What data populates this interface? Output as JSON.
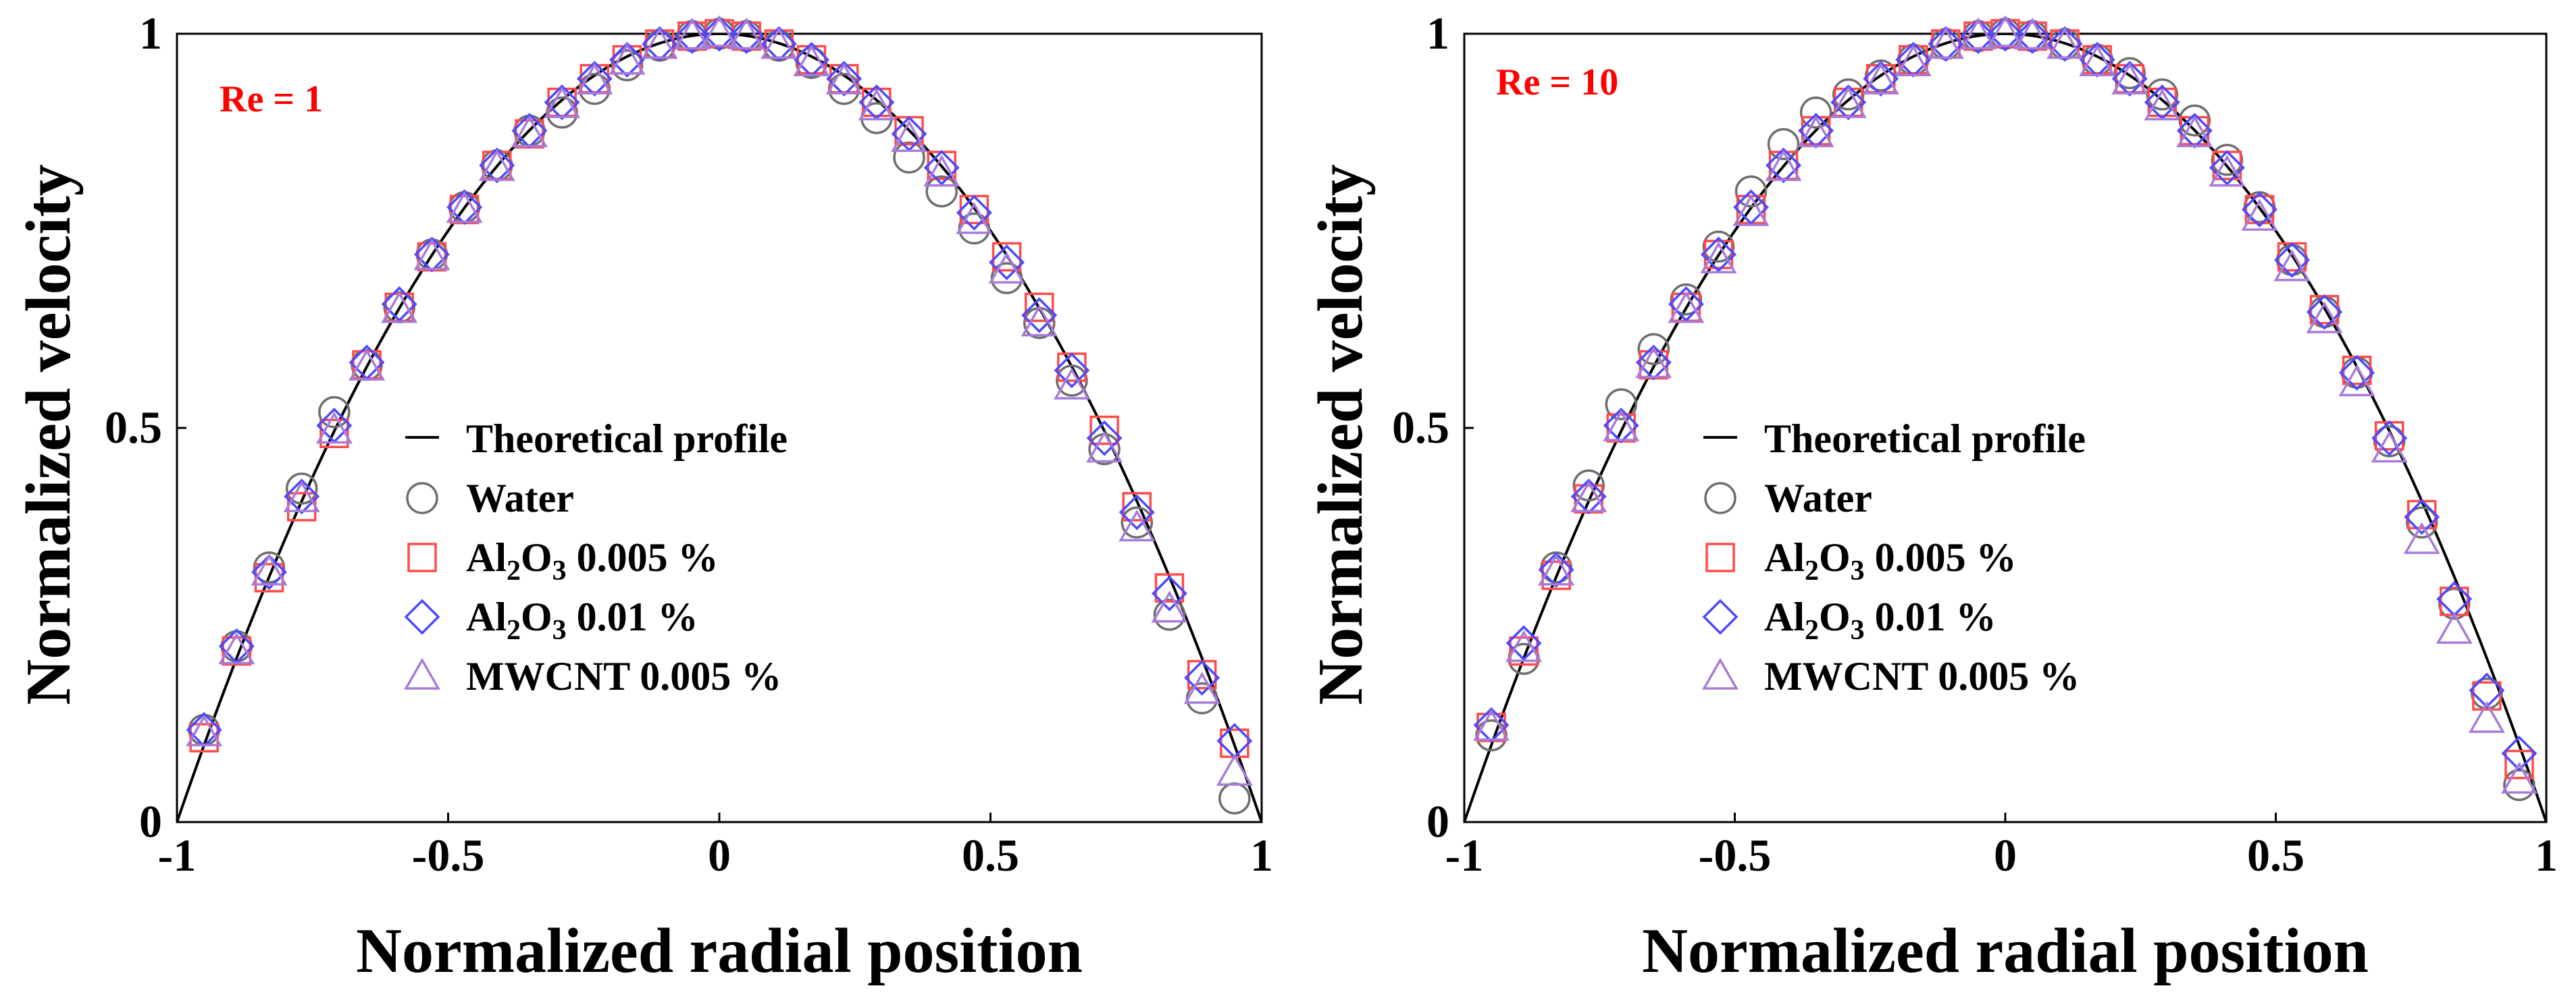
{
  "chart_data": [
    {
      "type": "scatter",
      "annotation": "Re = 1",
      "annotation_color": "#ff0000",
      "xlabel": "Normalized radial position",
      "ylabel": "Normalized velocity",
      "xlim": [
        -1,
        1
      ],
      "ylim": [
        0,
        1
      ],
      "xticks": [
        "-1",
        "-0.5",
        "0",
        "0.5",
        "1"
      ],
      "yticks": [
        "0",
        "0.5",
        "1"
      ],
      "legend_position": "center",
      "theory": {
        "name": "Theoretical profile",
        "formula": "1 - r^2",
        "color": "#000000"
      },
      "series": [
        {
          "name": "Water",
          "marker": "circle",
          "color": "#6e6e6e",
          "x": [
            -0.95,
            -0.89,
            -0.83,
            -0.77,
            -0.71,
            -0.65,
            -0.59,
            -0.53,
            -0.47,
            -0.41,
            -0.35,
            -0.29,
            -0.23,
            -0.17,
            -0.11,
            -0.05,
            0,
            0.05,
            0.11,
            0.17,
            0.23,
            0.29,
            0.35,
            0.41,
            0.47,
            0.53,
            0.59,
            0.65,
            0.71,
            0.77,
            0.83,
            0.89,
            0.95
          ],
          "y": [
            0.117,
            0.223,
            0.323,
            0.423,
            0.52,
            0.58,
            0.653,
            0.72,
            0.78,
            0.833,
            0.877,
            0.9,
            0.93,
            0.96,
            0.985,
            0.997,
            1.0,
            0.997,
            0.985,
            0.963,
            0.93,
            0.893,
            0.843,
            0.8,
            0.753,
            0.69,
            0.633,
            0.56,
            0.473,
            0.38,
            0.263,
            0.157,
            0.03
          ]
        },
        {
          "name": "Al2O3  0.005 %",
          "marker": "square",
          "color": "#ff4a4a",
          "x": [
            -0.95,
            -0.89,
            -0.83,
            -0.77,
            -0.71,
            -0.65,
            -0.59,
            -0.53,
            -0.47,
            -0.41,
            -0.35,
            -0.29,
            -0.23,
            -0.17,
            -0.11,
            -0.05,
            0,
            0.05,
            0.11,
            0.17,
            0.23,
            0.29,
            0.35,
            0.41,
            0.47,
            0.53,
            0.59,
            0.65,
            0.71,
            0.77,
            0.83,
            0.89,
            0.95
          ],
          "y": [
            0.107,
            0.217,
            0.31,
            0.4,
            0.493,
            0.58,
            0.653,
            0.717,
            0.777,
            0.833,
            0.873,
            0.913,
            0.943,
            0.967,
            0.987,
            0.997,
            1.0,
            0.997,
            0.987,
            0.967,
            0.943,
            0.913,
            0.877,
            0.833,
            0.777,
            0.717,
            0.653,
            0.577,
            0.497,
            0.4,
            0.297,
            0.187,
            0.1
          ]
        },
        {
          "name": "Al2O3  0.01 %",
          "marker": "diamond",
          "color": "#4a4aff",
          "x": [
            -0.95,
            -0.89,
            -0.83,
            -0.77,
            -0.71,
            -0.65,
            -0.59,
            -0.53,
            -0.47,
            -0.41,
            -0.35,
            -0.29,
            -0.23,
            -0.17,
            -0.11,
            -0.05,
            0,
            0.05,
            0.11,
            0.17,
            0.23,
            0.29,
            0.35,
            0.41,
            0.47,
            0.53,
            0.59,
            0.65,
            0.71,
            0.77,
            0.83,
            0.89,
            0.95
          ],
          "y": [
            0.117,
            0.223,
            0.317,
            0.413,
            0.503,
            0.583,
            0.657,
            0.72,
            0.78,
            0.833,
            0.877,
            0.913,
            0.943,
            0.967,
            0.987,
            0.997,
            1.0,
            0.997,
            0.987,
            0.967,
            0.943,
            0.913,
            0.873,
            0.83,
            0.773,
            0.71,
            0.643,
            0.573,
            0.487,
            0.393,
            0.29,
            0.183,
            0.103
          ]
        },
        {
          "name": "MWCNT  0.005 %",
          "marker": "triangle",
          "color": "#a77bd9",
          "x": [
            -0.95,
            -0.89,
            -0.83,
            -0.77,
            -0.71,
            -0.65,
            -0.59,
            -0.53,
            -0.47,
            -0.41,
            -0.35,
            -0.29,
            -0.23,
            -0.17,
            -0.11,
            -0.05,
            0,
            0.05,
            0.11,
            0.17,
            0.23,
            0.29,
            0.35,
            0.41,
            0.47,
            0.53,
            0.59,
            0.65,
            0.71,
            0.77,
            0.83,
            0.89,
            0.95
          ],
          "y": [
            0.113,
            0.217,
            0.317,
            0.41,
            0.497,
            0.577,
            0.65,
            0.717,
            0.777,
            0.83,
            0.873,
            0.91,
            0.94,
            0.965,
            0.985,
            0.997,
            1.0,
            0.997,
            0.985,
            0.963,
            0.94,
            0.907,
            0.867,
            0.823,
            0.763,
            0.7,
            0.633,
            0.553,
            0.473,
            0.373,
            0.27,
            0.167,
            0.063
          ]
        }
      ]
    },
    {
      "type": "scatter",
      "annotation": "Re = 10",
      "annotation_color": "#ff0000",
      "xlabel": "Normalized radial position",
      "ylabel": "Normalized velocity",
      "xlim": [
        -1,
        1
      ],
      "ylim": [
        0,
        1
      ],
      "xticks": [
        "-1",
        "-0.5",
        "0",
        "0.5",
        "1"
      ],
      "yticks": [
        "0",
        "0.5",
        "1"
      ],
      "legend_position": "center",
      "theory": {
        "name": "Theoretical profile",
        "formula": "1 - r^2",
        "color": "#000000"
      },
      "series": [
        {
          "name": "Water",
          "marker": "circle",
          "color": "#6e6e6e",
          "x": [
            -0.95,
            -0.89,
            -0.83,
            -0.77,
            -0.71,
            -0.65,
            -0.59,
            -0.53,
            -0.47,
            -0.41,
            -0.35,
            -0.29,
            -0.23,
            -0.17,
            -0.11,
            -0.05,
            0,
            0.05,
            0.11,
            0.17,
            0.23,
            0.29,
            0.35,
            0.41,
            0.47,
            0.53,
            0.59,
            0.65,
            0.71,
            0.77,
            0.83,
            0.89,
            0.95
          ],
          "y": [
            0.11,
            0.207,
            0.323,
            0.427,
            0.53,
            0.6,
            0.663,
            0.73,
            0.8,
            0.86,
            0.9,
            0.923,
            0.947,
            0.967,
            0.987,
            0.997,
            1.0,
            0.997,
            0.987,
            0.967,
            0.95,
            0.923,
            0.89,
            0.84,
            0.78,
            0.713,
            0.647,
            0.57,
            0.483,
            0.38,
            0.277,
            0.163,
            0.047
          ]
        },
        {
          "name": "Al2O3  0.005 %",
          "marker": "square",
          "color": "#ff4a4a",
          "x": [
            -0.95,
            -0.89,
            -0.83,
            -0.77,
            -0.71,
            -0.65,
            -0.59,
            -0.53,
            -0.47,
            -0.41,
            -0.35,
            -0.29,
            -0.23,
            -0.17,
            -0.11,
            -0.05,
            0,
            0.05,
            0.11,
            0.17,
            0.23,
            0.29,
            0.35,
            0.41,
            0.47,
            0.53,
            0.59,
            0.65,
            0.71,
            0.77,
            0.83,
            0.89,
            0.95
          ],
          "y": [
            0.12,
            0.217,
            0.313,
            0.41,
            0.5,
            0.58,
            0.653,
            0.72,
            0.777,
            0.833,
            0.877,
            0.913,
            0.943,
            0.967,
            0.987,
            0.997,
            1.0,
            0.997,
            0.987,
            0.967,
            0.943,
            0.913,
            0.877,
            0.833,
            0.777,
            0.717,
            0.65,
            0.573,
            0.49,
            0.39,
            0.28,
            0.16,
            0.073
          ]
        },
        {
          "name": "Al2O3  0.01 %",
          "marker": "diamond",
          "color": "#4a4aff",
          "x": [
            -0.95,
            -0.89,
            -0.83,
            -0.77,
            -0.71,
            -0.65,
            -0.59,
            -0.53,
            -0.47,
            -0.41,
            -0.35,
            -0.29,
            -0.23,
            -0.17,
            -0.11,
            -0.05,
            0,
            0.05,
            0.11,
            0.17,
            0.23,
            0.29,
            0.35,
            0.41,
            0.47,
            0.53,
            0.59,
            0.65,
            0.71,
            0.77,
            0.83,
            0.89,
            0.95
          ],
          "y": [
            0.123,
            0.227,
            0.32,
            0.413,
            0.503,
            0.583,
            0.657,
            0.72,
            0.78,
            0.833,
            0.877,
            0.913,
            0.943,
            0.967,
            0.987,
            0.997,
            1.0,
            0.997,
            0.987,
            0.967,
            0.943,
            0.913,
            0.877,
            0.83,
            0.777,
            0.713,
            0.647,
            0.57,
            0.487,
            0.387,
            0.283,
            0.167,
            0.087
          ]
        },
        {
          "name": "MWCNT  0.005 %",
          "marker": "triangle",
          "color": "#a77bd9",
          "x": [
            -0.95,
            -0.89,
            -0.83,
            -0.77,
            -0.71,
            -0.65,
            -0.59,
            -0.53,
            -0.47,
            -0.41,
            -0.35,
            -0.29,
            -0.23,
            -0.17,
            -0.11,
            -0.05,
            0,
            0.05,
            0.11,
            0.17,
            0.23,
            0.29,
            0.35,
            0.41,
            0.47,
            0.53,
            0.59,
            0.65,
            0.71,
            0.77,
            0.83,
            0.89,
            0.95
          ],
          "y": [
            0.12,
            0.22,
            0.317,
            0.41,
            0.5,
            0.58,
            0.65,
            0.713,
            0.773,
            0.83,
            0.873,
            0.91,
            0.94,
            0.963,
            0.985,
            0.997,
            1.0,
            0.997,
            0.985,
            0.963,
            0.94,
            0.907,
            0.873,
            0.823,
            0.767,
            0.703,
            0.637,
            0.557,
            0.473,
            0.357,
            0.243,
            0.13,
            0.053
          ]
        }
      ]
    }
  ]
}
